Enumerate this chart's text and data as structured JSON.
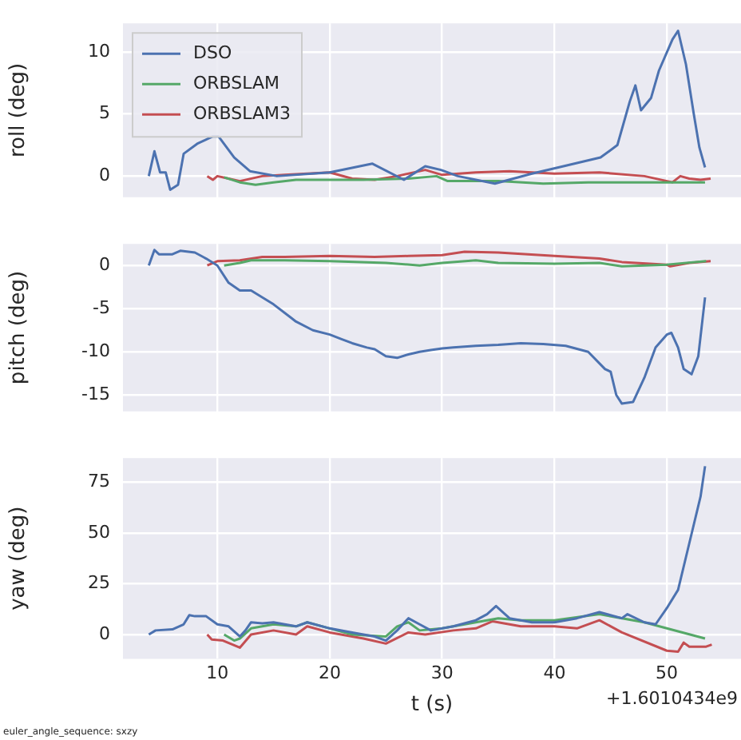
{
  "chart_data": [
    {
      "type": "line",
      "ylabel": "roll (deg)",
      "xlim": [
        1.6,
        56.6
      ],
      "xticks": [
        10,
        20,
        30,
        40,
        50
      ],
      "ylim": [
        -1.7,
        12.3
      ],
      "yticks": [
        0,
        5,
        10
      ],
      "grid": true,
      "legend": "top left",
      "marker": "none",
      "tick_labels": "y",
      "series": [
        {
          "name": "DSO",
          "color": "#4c72b0",
          "x": [
            3.9,
            4.4,
            4.9,
            5.4,
            5.8,
            6.5,
            7,
            8.2,
            9.6,
            10.1,
            11.5,
            12.9,
            15.3,
            20,
            23.8,
            26.6,
            28.5,
            29.9,
            31.4,
            34.7,
            38,
            40.8,
            44.1,
            45.6,
            46.7,
            47.2,
            47.7,
            48.6,
            49.3,
            50.5,
            51,
            51.7,
            52.4,
            52.9,
            53.4
          ],
          "values": [
            0,
            2,
            0.3,
            0.3,
            -1.1,
            -0.7,
            1.8,
            2.6,
            3.2,
            3.2,
            1.5,
            0.4,
            0,
            0.3,
            1.0,
            -0.3,
            0.8,
            0.5,
            0,
            -0.6,
            0.2,
            0.8,
            1.5,
            2.5,
            6.0,
            7.3,
            5.3,
            6.3,
            8.5,
            11.0,
            11.7,
            9,
            5,
            2.3,
            0.7
          ]
        },
        {
          "name": "ORBSLAM",
          "color": "#55a868",
          "x": [
            10.6,
            12,
            13.4,
            15,
            17,
            20,
            23,
            27,
            29.5,
            30.5,
            35,
            39,
            43,
            48,
            53.4
          ],
          "values": [
            -0.1,
            -0.5,
            -0.7,
            -0.5,
            -0.3,
            -0.3,
            -0.3,
            -0.2,
            0,
            -0.4,
            -0.4,
            -0.6,
            -0.5,
            -0.5,
            -0.5
          ]
        },
        {
          "name": "ORBSLAM3",
          "color": "#c44e52",
          "x": [
            9.1,
            9.6,
            10,
            11,
            12,
            14,
            16,
            18,
            20,
            22,
            24,
            26,
            28.5,
            30,
            33,
            36,
            40,
            44,
            48,
            50.5,
            51.2,
            52,
            53,
            53.9
          ],
          "values": [
            0,
            -0.3,
            0,
            -0.2,
            -0.4,
            0,
            0.1,
            0.2,
            0.3,
            -0.2,
            -0.3,
            0,
            0.5,
            0.1,
            0.3,
            0.4,
            0.2,
            0.3,
            0,
            -0.5,
            0,
            -0.2,
            -0.3,
            -0.2
          ]
        }
      ]
    },
    {
      "type": "line",
      "ylabel": "pitch (deg)",
      "xlim": [
        1.6,
        56.6
      ],
      "xticks": [
        10,
        20,
        30,
        40,
        50
      ],
      "ylim": [
        -16.9,
        2.5
      ],
      "yticks": [
        -15,
        -10,
        -5,
        0
      ],
      "grid": true,
      "marker": "none",
      "tick_labels": "y",
      "series": [
        {
          "color": "#4c72b0",
          "x": [
            3.9,
            4.4,
            4.8,
            6,
            6.7,
            8,
            9,
            10,
            11,
            12,
            13,
            15,
            16.5,
            17,
            18.5,
            20,
            21,
            22,
            23.3,
            24,
            25,
            26,
            27,
            28,
            29,
            30,
            31,
            33,
            35,
            37,
            39,
            41,
            43,
            44.5,
            45,
            45.5,
            46,
            47,
            48,
            49,
            50,
            50.4,
            51,
            51.5,
            52.2,
            52.8,
            53.4
          ],
          "values": [
            0,
            1.8,
            1.3,
            1.3,
            1.7,
            1.5,
            0.8,
            0,
            -2,
            -2.9,
            -2.9,
            -4.5,
            -6,
            -6.5,
            -7.5,
            -8,
            -8.5,
            -9,
            -9.5,
            -9.7,
            -10.5,
            -10.7,
            -10.3,
            -10,
            -9.8,
            -9.6,
            -9.5,
            -9.3,
            -9.2,
            -9,
            -9.1,
            -9.3,
            -10,
            -12,
            -12.3,
            -15,
            -16,
            -15.8,
            -13,
            -9.5,
            -8,
            -7.8,
            -9.5,
            -12,
            -12.6,
            -10.5,
            -3.7
          ]
        },
        {
          "color": "#55a868",
          "x": [
            10.6,
            12,
            13,
            16,
            20,
            25,
            28,
            30,
            33,
            35,
            40,
            44,
            46,
            50,
            53.5
          ],
          "values": [
            0,
            0.3,
            0.6,
            0.6,
            0.5,
            0.3,
            0,
            0.3,
            0.6,
            0.3,
            0.2,
            0.3,
            -0.1,
            0.1,
            0.5
          ]
        },
        {
          "color": "#c44e52",
          "x": [
            9.1,
            10,
            12,
            14,
            16,
            20,
            24,
            27,
            30,
            32,
            35,
            40,
            44,
            46,
            50,
            50.3,
            52,
            53.9
          ],
          "values": [
            0,
            0.5,
            0.6,
            1,
            1,
            1.1,
            1,
            1.1,
            1.2,
            1.6,
            1.5,
            1.1,
            0.8,
            0.4,
            0.1,
            -0.1,
            0.3,
            0.5
          ]
        }
      ]
    },
    {
      "type": "line",
      "ylabel": "yaw (deg)",
      "xlabel": "t (s)",
      "xlim": [
        1.6,
        56.6
      ],
      "xticks": [
        10,
        20,
        30,
        40,
        50
      ],
      "ylim": [
        -12,
        87
      ],
      "yticks": [
        0,
        25,
        50,
        75
      ],
      "grid": true,
      "marker": "none",
      "annotations": [
        "+1.6010434e9",
        "euler_angle_sequence: sxzy"
      ],
      "series": [
        {
          "color": "#4c72b0",
          "x": [
            3.9,
            4.5,
            6,
            7,
            7.5,
            8,
            9,
            10,
            11,
            12,
            12.5,
            13,
            14,
            15,
            16,
            17,
            18,
            20,
            22,
            24,
            25,
            26,
            27,
            28,
            29,
            31,
            33,
            34,
            34.8,
            36,
            38,
            40,
            42,
            44,
            46,
            46.5,
            48,
            49,
            50,
            51,
            52,
            53,
            53.4
          ],
          "values": [
            0,
            2,
            2.5,
            5,
            9.5,
            9,
            9,
            5,
            4,
            -1,
            2,
            6,
            5.5,
            6,
            5,
            4,
            6,
            3,
            1,
            -1,
            -3,
            2,
            8,
            5,
            2,
            4,
            7,
            10,
            14,
            8,
            6,
            6,
            8,
            11,
            8,
            10,
            6,
            5,
            13,
            22,
            45,
            68,
            83
          ]
        },
        {
          "color": "#55a868",
          "x": [
            10.6,
            11.5,
            12,
            13,
            15,
            17,
            18,
            20,
            22,
            25,
            26,
            27,
            28,
            30,
            32,
            35,
            37,
            40,
            44,
            48,
            53.4
          ],
          "values": [
            0,
            -3,
            -2,
            3,
            5,
            4,
            6,
            3,
            0,
            -1,
            4,
            6,
            2,
            3,
            5,
            8,
            7,
            7,
            10,
            6,
            -2
          ]
        },
        {
          "color": "#c44e52",
          "x": [
            9.1,
            9.5,
            10.5,
            12,
            13,
            15,
            17,
            18,
            20,
            23,
            25,
            27,
            28.5,
            31,
            33,
            34.5,
            37,
            40,
            42,
            44,
            46,
            50,
            51,
            51.5,
            52,
            53.5,
            54
          ],
          "values": [
            0,
            -2.5,
            -3,
            -6.5,
            0,
            2,
            0,
            4,
            1,
            -2,
            -4.5,
            1,
            0,
            2,
            3,
            6.5,
            4,
            4,
            3,
            7,
            1,
            -8,
            -8.5,
            -4,
            -6,
            -6,
            -5
          ]
        }
      ]
    }
  ]
}
